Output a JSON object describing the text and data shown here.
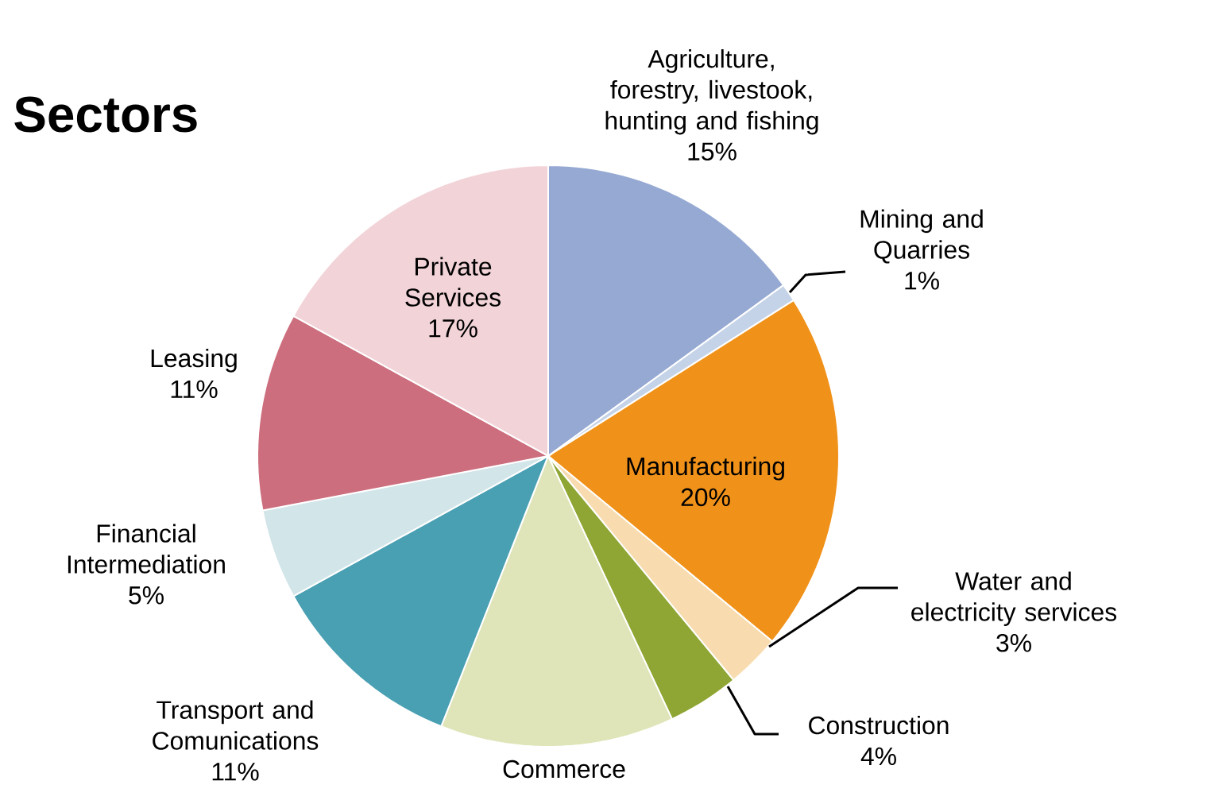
{
  "chart_data": {
    "type": "pie",
    "title": "Sectors",
    "categories": [
      "Agriculture, forestry, livestook, hunting and fishing",
      "Mining and Quarries",
      "Manufacturing",
      "Water and electricity services",
      "Construction",
      "Commerce",
      "Transport and Comunications",
      "Financial Intermediation",
      "Leasing",
      "Private Services"
    ],
    "values": [
      15,
      1,
      20,
      3,
      4,
      13,
      11,
      5,
      11,
      17
    ],
    "value_labels": [
      "15%",
      "1%",
      "20%",
      "3%",
      "4%",
      null,
      "11%",
      "5%",
      "11%",
      "17%"
    ],
    "colors": [
      "#95a9d2",
      "#c5d3e8",
      "#f0921a",
      "#f8dcb0",
      "#8fa634",
      "#dfe5b8",
      "#4aa0b3",
      "#d2e5e9",
      "#cc6e7d",
      "#f2d3d8"
    ]
  }
}
